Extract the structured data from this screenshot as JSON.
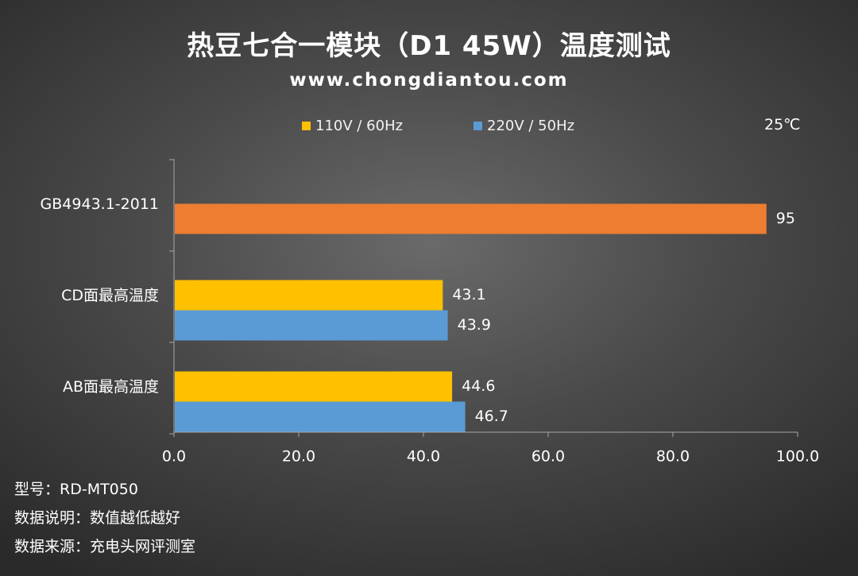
{
  "title": "热豆七合一模块（D1 45W）温度测试",
  "subtitle": "www.chongdiantou.com",
  "ambient_temperature": "25℃",
  "notes": [
    "型号：RD-MT050",
    "数据说明：数值越低越好",
    "数据来源：充电头网评测室"
  ],
  "colors": {
    "series_110v": "#ffc000",
    "series_220v": "#5b9bd5",
    "standard": "#ed7d31"
  },
  "chart_data": {
    "type": "bar",
    "orientation": "horizontal",
    "categories": [
      "GB4943.1-2011",
      "CD面最高温度",
      "AB面最高温度"
    ],
    "series": [
      {
        "name": "110V / 60Hz",
        "values": [
          null,
          43.1,
          44.6
        ]
      },
      {
        "name": "220V / 50Hz",
        "values": [
          null,
          43.9,
          46.7
        ]
      }
    ],
    "standard": {
      "category": "GB4943.1-2011",
      "value": 95
    },
    "data_labels": {
      "standard": "95",
      "series_110v": [
        "",
        "43.1",
        "44.6"
      ],
      "series_220v": [
        "",
        "43.9",
        "46.7"
      ]
    },
    "xlim": [
      0,
      100
    ],
    "xticks": [
      "0.0",
      "20.0",
      "40.0",
      "60.0",
      "80.0",
      "100.0"
    ],
    "legend_position": "top",
    "grid": false
  }
}
